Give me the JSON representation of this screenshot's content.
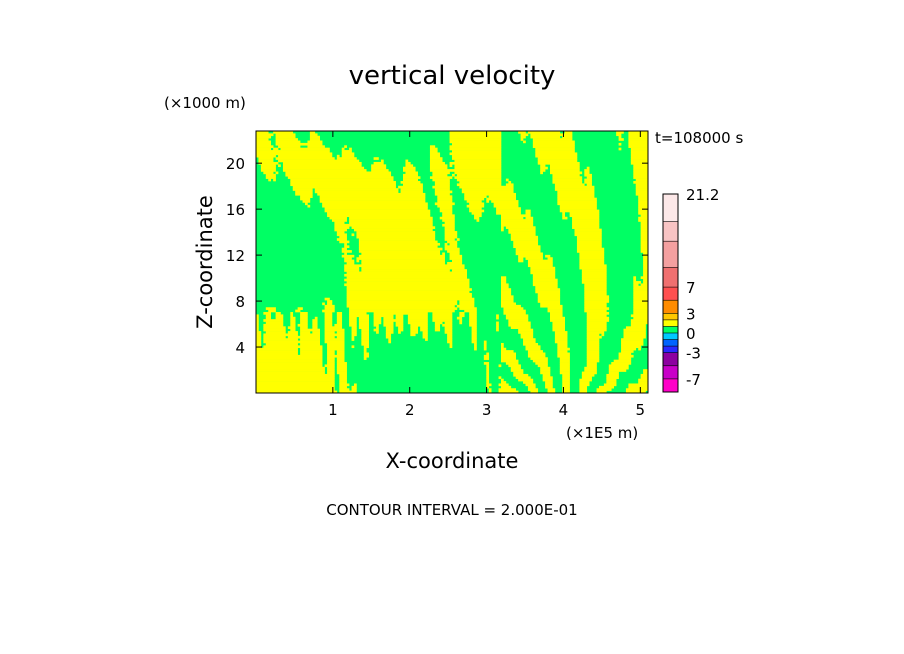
{
  "chart_data": {
    "type": "heatmap",
    "title": "vertical velocity",
    "xlabel": "X-coordinate",
    "ylabel": "Z-coordinate",
    "x_unit": "(×1E5 m)",
    "y_unit": "(×1000 m)",
    "time_label": "t=108000 s",
    "contour_interval": "CONTOUR INTERVAL = 2.000E-01",
    "xlim": [
      0,
      5.1
    ],
    "ylim": [
      0,
      22.8
    ],
    "xticks": [
      1,
      2,
      3,
      4,
      5
    ],
    "yticks": [
      4,
      8,
      12,
      16,
      20
    ],
    "colorbar": {
      "levels": [
        -9,
        -7,
        -5,
        -3,
        -2,
        -1,
        0,
        1,
        2,
        3,
        5,
        7,
        10,
        14,
        17,
        21.2
      ],
      "colors": [
        "#ff00c8",
        "#c800c8",
        "#8c00a0",
        "#2828ff",
        "#0064ff",
        "#00c8ff",
        "#00ff64",
        "#ffff00",
        "#ffc800",
        "#ff8c00",
        "#ff5050",
        "#f07070",
        "#f4a0a0",
        "#f8c4c4",
        "#fce8e8"
      ],
      "tick_labels": [
        "21.2",
        "7",
        "3",
        "0",
        "-3",
        "-7"
      ],
      "tick_values": [
        21.2,
        7,
        3,
        0,
        -3,
        -7
      ]
    },
    "field_colors": {
      "negative_small": "#00ff64",
      "positive_small": "#ffff00"
    }
  }
}
